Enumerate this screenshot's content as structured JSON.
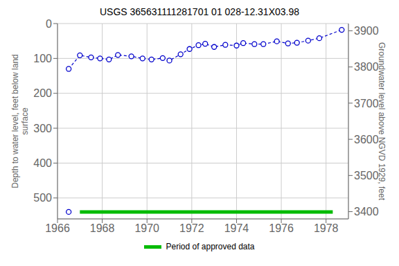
{
  "chart_data": {
    "type": "line",
    "title": "USGS 365631111281701 01 028-12.31X03.98",
    "ylabel": "Depth to water level, feet below land\nsurface",
    "y2label": "Groundwater level above NGVD 1929, feet",
    "series": [
      {
        "x": [
          1966.5,
          1967.0,
          1967.5,
          1967.9,
          1968.3,
          1968.7,
          1969.3,
          1969.8,
          1970.2,
          1970.7,
          1971.0,
          1971.5,
          1971.9,
          1972.3,
          1972.6,
          1973.0,
          1973.5,
          1974.0,
          1974.3,
          1974.8,
          1975.2,
          1975.8,
          1976.3,
          1976.7,
          1977.2,
          1977.7,
          1978.7
        ],
        "values": [
          130,
          91,
          97,
          100,
          103,
          90,
          94,
          100,
          103,
          99,
          106,
          88,
          73,
          62,
          58,
          67,
          61,
          63,
          56,
          59,
          59,
          51,
          57,
          55,
          49,
          42,
          18
        ],
        "color": "#0000cc",
        "marker": "o",
        "line_style": "dashed"
      },
      {
        "name": "Period of approved data",
        "x": [
          1967.0,
          1978.3
        ],
        "values": [
          540,
          540
        ],
        "color": "#00bb00",
        "line_style": "solid"
      },
      {
        "x": [
          1966.5
        ],
        "values": [
          540
        ],
        "color": "#0000cc",
        "marker": "o",
        "line_style": "none"
      }
    ],
    "xlim": [
      1966,
      1979
    ],
    "xticks": [
      1966,
      1968,
      1970,
      1972,
      1974,
      1976,
      1978
    ],
    "ylim": [
      560,
      0
    ],
    "yticks": [
      0,
      100,
      200,
      300,
      400,
      500
    ],
    "y2lim": [
      3380,
      3920
    ],
    "y2ticks": [
      3400,
      3500,
      3600,
      3700,
      3800,
      3900
    ],
    "grid": true,
    "legend": "bottom"
  }
}
